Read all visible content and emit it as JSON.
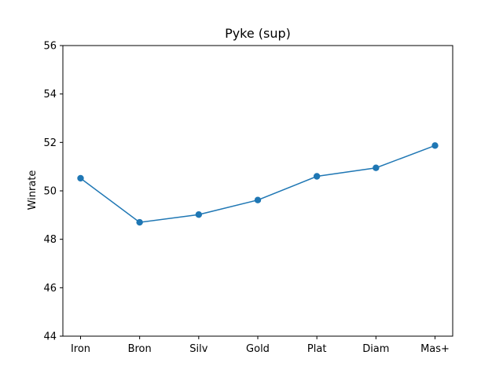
{
  "chart_data": {
    "type": "line",
    "title": "Pyke (sup)",
    "xlabel": "",
    "ylabel": "Winrate",
    "categories": [
      "Iron",
      "Bron",
      "Silv",
      "Gold",
      "Plat",
      "Diam",
      "Mas+"
    ],
    "series": [
      {
        "values": [
          50.52,
          48.7,
          49.02,
          49.62,
          50.6,
          50.95,
          51.87
        ],
        "color": "#1f77b4",
        "marker": "circle"
      }
    ],
    "ylim": [
      44,
      56
    ],
    "yticks": [
      "44",
      "46",
      "48",
      "50",
      "52",
      "54",
      "56"
    ],
    "grid": false,
    "legend": "none"
  }
}
